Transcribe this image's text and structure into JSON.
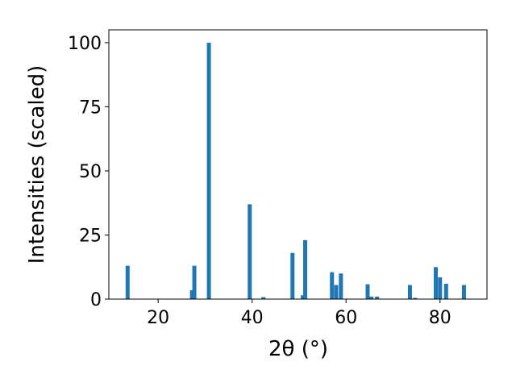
{
  "chart_data": {
    "type": "bar",
    "x_label": "2θ (°)",
    "y_label": "Intensities (scaled)",
    "x": [
      13.5,
      27.2,
      27.7,
      30.8,
      39.5,
      42.4,
      48.6,
      50.8,
      51.3,
      57.0,
      57.9,
      58.9,
      64.6,
      65.4,
      66.6,
      73.6,
      74.7,
      79.1,
      80.0,
      81.3,
      85.1
    ],
    "values": [
      13,
      3.5,
      13,
      100,
      37,
      0.8,
      18,
      1.5,
      23,
      10.5,
      5.5,
      10,
      5.8,
      1,
      1,
      5.5,
      0.5,
      12.5,
      8.5,
      6,
      5.5
    ],
    "color": "#1f77b4",
    "xlim": [
      9.5,
      90
    ],
    "xticks": [
      20,
      40,
      60,
      80
    ],
    "ylim": [
      0,
      105
    ],
    "yticks": [
      0,
      25,
      50,
      75,
      100
    ],
    "grid": false
  }
}
